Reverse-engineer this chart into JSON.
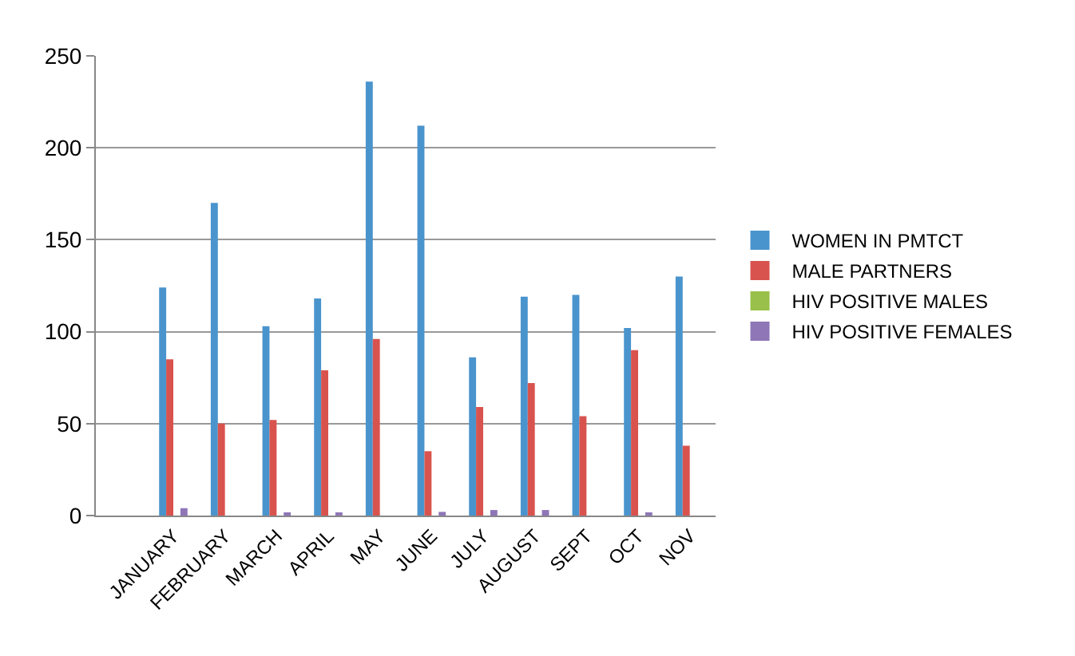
{
  "chart_data": {
    "type": "bar",
    "categories": [
      null,
      "JANUARY",
      "FEBRUARY",
      "MARCH",
      "APRIL",
      "MAY",
      "JUNE",
      "JULY",
      "AUGUST",
      "SEPT",
      "OCT",
      "NOV"
    ],
    "series": [
      {
        "name": "WOMEN IN PMTCT",
        "color": "#4a94cd",
        "values": [
          null,
          124,
          170,
          103,
          118,
          236,
          212,
          86,
          119,
          120,
          102,
          130
        ]
      },
      {
        "name": "MALE PARTNERS",
        "color": "#d9534e",
        "values": [
          null,
          85,
          50,
          52,
          79,
          96,
          35,
          59,
          72,
          54,
          90,
          38
        ]
      },
      {
        "name": "HIV POSITIVE MALES",
        "color": "#98c04a",
        "values": [
          null,
          0,
          0,
          0,
          0,
          0,
          0,
          0,
          0,
          0,
          0,
          0
        ]
      },
      {
        "name": "HIV POSITIVE FEMALES",
        "color": "#8e76b7",
        "values": [
          null,
          4,
          0,
          1,
          1,
          0,
          2,
          3,
          3,
          0,
          1,
          0
        ]
      }
    ],
    "ylim": [
      0,
      250
    ],
    "yticks": [
      0,
      50,
      100,
      150,
      200,
      250
    ],
    "grid": "y",
    "legend": "right"
  }
}
